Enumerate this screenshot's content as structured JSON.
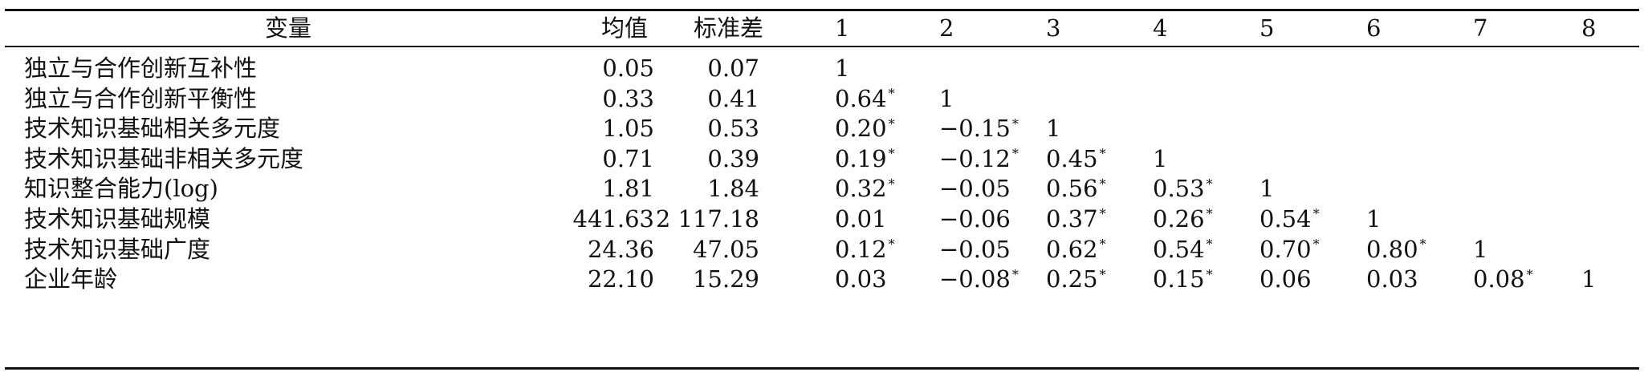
{
  "header": {
    "variable": "变量",
    "mean": "均值",
    "sd": "标准差",
    "cols": [
      "1",
      "2",
      "3",
      "4",
      "5",
      "6",
      "7",
      "8"
    ]
  },
  "rows": [
    {
      "label": "独立与合作创新互补性",
      "mean": "0.05",
      "sd": "0.07",
      "corr": [
        {
          "v": "1",
          "s": ""
        }
      ]
    },
    {
      "label": "独立与合作创新平衡性",
      "mean": "0.33",
      "sd": "0.41",
      "corr": [
        {
          "v": "0.64",
          "s": "*"
        },
        {
          "v": "1",
          "s": ""
        }
      ]
    },
    {
      "label": "技术知识基础相关多元度",
      "mean": "1.05",
      "sd": "0.53",
      "corr": [
        {
          "v": "0.20",
          "s": "*"
        },
        {
          "v": "−0.15",
          "s": "*"
        },
        {
          "v": "1",
          "s": ""
        }
      ]
    },
    {
      "label": "技术知识基础非相关多元度",
      "mean": "0.71",
      "sd": "0.39",
      "corr": [
        {
          "v": "0.19",
          "s": "*"
        },
        {
          "v": "−0.12",
          "s": "*"
        },
        {
          "v": "0.45",
          "s": "*"
        },
        {
          "v": "1",
          "s": ""
        }
      ]
    },
    {
      "label": "知识整合能力(log)",
      "mean": "1.81",
      "sd": "1.84",
      "corr": [
        {
          "v": "0.32",
          "s": "*"
        },
        {
          "v": "−0.05",
          "s": ""
        },
        {
          "v": "0.56",
          "s": "*"
        },
        {
          "v": "0.53",
          "s": "*"
        },
        {
          "v": "1",
          "s": ""
        }
      ]
    },
    {
      "label": "技术知识基础规模",
      "mean": "441.63",
      "sd": "2 117.18",
      "corr": [
        {
          "v": "0.01",
          "s": ""
        },
        {
          "v": "−0.06",
          "s": ""
        },
        {
          "v": "0.37",
          "s": "*"
        },
        {
          "v": "0.26",
          "s": "*"
        },
        {
          "v": "0.54",
          "s": "*"
        },
        {
          "v": "1",
          "s": ""
        }
      ]
    },
    {
      "label": "技术知识基础广度",
      "mean": "24.36",
      "sd": "47.05",
      "corr": [
        {
          "v": "0.12",
          "s": "*"
        },
        {
          "v": "−0.05",
          "s": ""
        },
        {
          "v": "0.62",
          "s": "*"
        },
        {
          "v": "0.54",
          "s": "*"
        },
        {
          "v": "0.70",
          "s": "*"
        },
        {
          "v": "0.80",
          "s": "*"
        },
        {
          "v": "1",
          "s": ""
        }
      ]
    },
    {
      "label": "企业年龄",
      "mean": "22.10",
      "sd": "15.29",
      "corr": [
        {
          "v": "0.03",
          "s": ""
        },
        {
          "v": "−0.08",
          "s": "*"
        },
        {
          "v": "0.25",
          "s": "*"
        },
        {
          "v": "0.15",
          "s": "*"
        },
        {
          "v": "0.06",
          "s": ""
        },
        {
          "v": "0.03",
          "s": ""
        },
        {
          "v": "0.08",
          "s": "*"
        },
        {
          "v": "1",
          "s": ""
        }
      ]
    }
  ]
}
